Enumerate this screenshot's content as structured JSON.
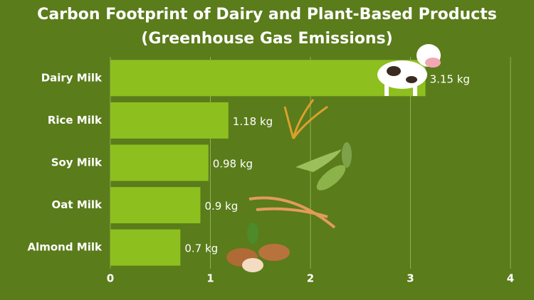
{
  "chart_data": {
    "type": "bar",
    "orientation": "horizontal",
    "title": [
      "Carbon Footprint of Dairy and Plant-Based Products",
      "(Greenhouse Gas Emissions)"
    ],
    "categories": [
      "Dairy Milk",
      "Rice Milk",
      "Soy Milk",
      "Oat Milk",
      "Almond Milk"
    ],
    "values": [
      3.15,
      1.18,
      0.98,
      0.9,
      0.7
    ],
    "value_labels": [
      "3.15 kg",
      "1.18 kg",
      "0.98 kg",
      "0.9 kg",
      "0.7 kg"
    ],
    "color": "#8dbf1f",
    "xlim": [
      0,
      4
    ],
    "xticks": [
      0,
      1,
      2,
      3,
      4
    ],
    "grid": true
  }
}
